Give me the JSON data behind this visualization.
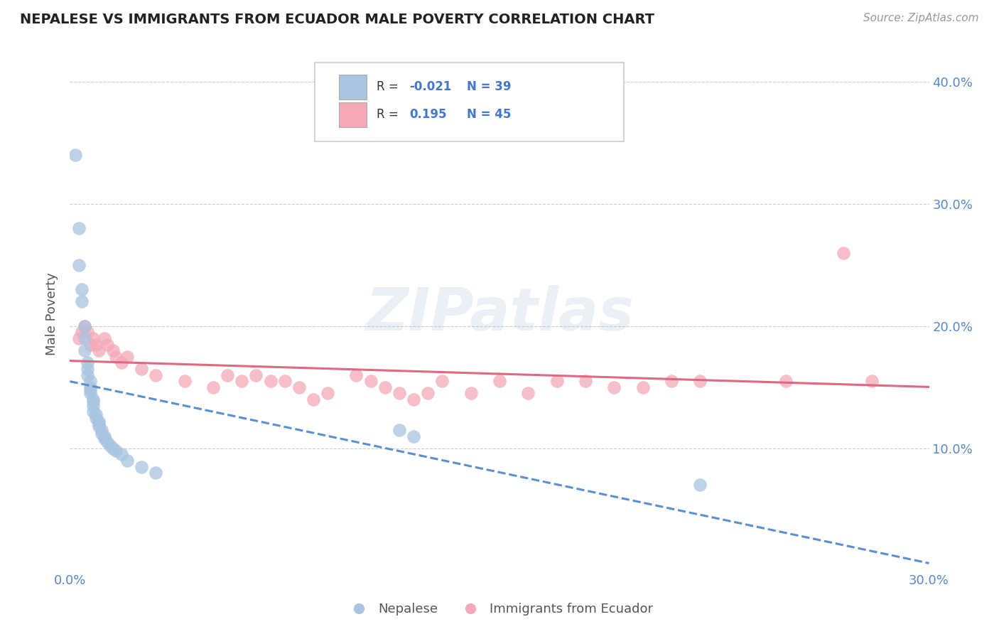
{
  "title": "NEPALESE VS IMMIGRANTS FROM ECUADOR MALE POVERTY CORRELATION CHART",
  "source": "Source: ZipAtlas.com",
  "ylabel": "Male Poverty",
  "x_min": 0.0,
  "x_max": 0.3,
  "y_min": 0.0,
  "y_max": 0.42,
  "x_ticks": [
    0.0,
    0.05,
    0.1,
    0.15,
    0.2,
    0.25,
    0.3
  ],
  "x_tick_labels": [
    "0.0%",
    "",
    "",
    "",
    "",
    "",
    "30.0%"
  ],
  "y_ticks": [
    0.1,
    0.2,
    0.3,
    0.4
  ],
  "y_tick_labels": [
    "10.0%",
    "20.0%",
    "30.0%",
    "40.0%"
  ],
  "color_nepalese": "#a8c4e0",
  "color_ecuador": "#f4a8b8",
  "color_line_nepalese": "#5a8fd0",
  "color_line_ecuador": "#e06880",
  "watermark_text": "ZIPatlas",
  "nepalese_x": [
    0.002,
    0.003,
    0.003,
    0.004,
    0.004,
    0.005,
    0.005,
    0.005,
    0.006,
    0.006,
    0.006,
    0.007,
    0.007,
    0.007,
    0.007,
    0.008,
    0.008,
    0.008,
    0.008,
    0.009,
    0.009,
    0.01,
    0.01,
    0.01,
    0.011,
    0.011,
    0.012,
    0.012,
    0.013,
    0.014,
    0.015,
    0.016,
    0.018,
    0.02,
    0.025,
    0.03,
    0.115,
    0.12,
    0.22
  ],
  "nepalese_y": [
    0.34,
    0.28,
    0.25,
    0.23,
    0.22,
    0.2,
    0.19,
    0.18,
    0.17,
    0.165,
    0.16,
    0.155,
    0.15,
    0.148,
    0.145,
    0.14,
    0.138,
    0.135,
    0.13,
    0.128,
    0.125,
    0.122,
    0.12,
    0.118,
    0.115,
    0.112,
    0.11,
    0.108,
    0.105,
    0.102,
    0.1,
    0.098,
    0.095,
    0.09,
    0.085,
    0.08,
    0.115,
    0.11,
    0.07
  ],
  "ecuador_x": [
    0.003,
    0.004,
    0.005,
    0.006,
    0.007,
    0.008,
    0.009,
    0.01,
    0.012,
    0.013,
    0.015,
    0.016,
    0.018,
    0.02,
    0.025,
    0.03,
    0.04,
    0.05,
    0.055,
    0.06,
    0.065,
    0.07,
    0.075,
    0.08,
    0.085,
    0.09,
    0.1,
    0.105,
    0.11,
    0.115,
    0.12,
    0.125,
    0.13,
    0.14,
    0.15,
    0.16,
    0.17,
    0.18,
    0.19,
    0.2,
    0.21,
    0.22,
    0.25,
    0.27,
    0.28
  ],
  "ecuador_y": [
    0.19,
    0.195,
    0.2,
    0.195,
    0.185,
    0.19,
    0.185,
    0.18,
    0.19,
    0.185,
    0.18,
    0.175,
    0.17,
    0.175,
    0.165,
    0.16,
    0.155,
    0.15,
    0.16,
    0.155,
    0.16,
    0.155,
    0.155,
    0.15,
    0.14,
    0.145,
    0.16,
    0.155,
    0.15,
    0.145,
    0.14,
    0.145,
    0.155,
    0.145,
    0.155,
    0.145,
    0.155,
    0.155,
    0.15,
    0.15,
    0.155,
    0.155,
    0.155,
    0.26,
    0.155
  ]
}
